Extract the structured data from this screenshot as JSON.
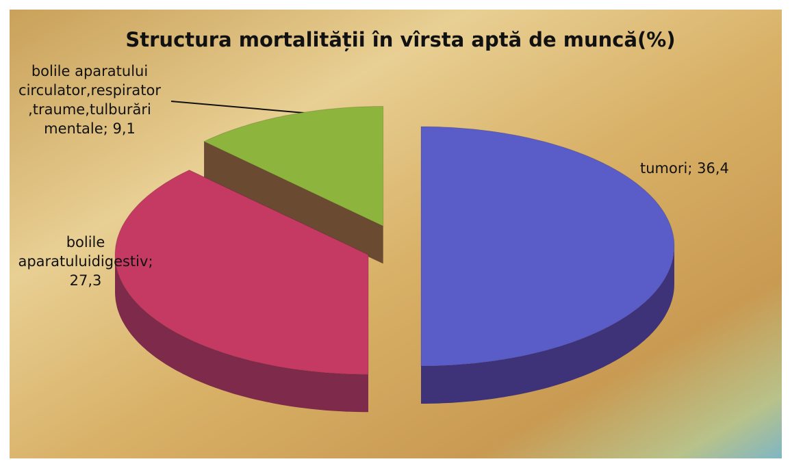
{
  "chart_data": {
    "type": "pie",
    "title": "Structura mortalității în vîrsta aptă de muncă(%)",
    "categories": [
      "tumori",
      "bolile aparatuluidigestiv",
      "bolile aparatului circulator,respirator,traume,tulburări mentale"
    ],
    "values": [
      36.4,
      27.3,
      9.1
    ],
    "value_labels": [
      "36,4",
      "27,3",
      "9,1"
    ],
    "label_separator": "; ",
    "colors": [
      "#5a5cc8",
      "#c53a62",
      "#8db43c"
    ],
    "side_colors": [
      "#3e3278",
      "#7e2a4a",
      "#6b4a32"
    ]
  }
}
